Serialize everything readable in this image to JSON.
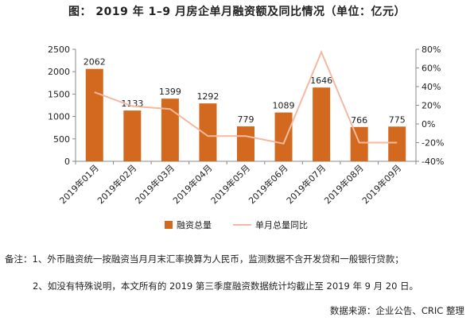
{
  "chart_data": {
    "type": "bar+line",
    "title": "图：  2019 年 1–9 月房企单月融资额及同比情况（单位：亿元）",
    "categories": [
      "2019年01月",
      "2019年02月",
      "2019年03月",
      "2019年04月",
      "2019年05月",
      "2019年06月",
      "2019年07月",
      "2019年08月",
      "2019年09月"
    ],
    "series": [
      {
        "name": "融资总量",
        "type": "bar",
        "axis": "left",
        "color": "#d2691e",
        "values": [
          2062,
          1133,
          1399,
          1292,
          779,
          1089,
          1646,
          766,
          775
        ]
      },
      {
        "name": "单月总量同比",
        "type": "line",
        "axis": "right",
        "color": "#f4b9a0",
        "values": [
          0.34,
          0.19,
          0.16,
          -0.13,
          -0.13,
          -0.21,
          0.77,
          -0.2,
          -0.2
        ]
      }
    ],
    "y_left": {
      "lim": [
        0,
        2500
      ],
      "ticks": [
        "0",
        "500",
        "1000",
        "1500",
        "2000",
        "2500"
      ],
      "tick_values": [
        0,
        500,
        1000,
        1500,
        2000,
        2500
      ]
    },
    "y_right": {
      "lim": [
        -0.4,
        0.8
      ],
      "ticks": [
        "-40%",
        "-20%",
        "0%",
        "20%",
        "40%",
        "60%",
        "80%"
      ],
      "tick_values": [
        -0.4,
        -0.2,
        0,
        0.2,
        0.4,
        0.6,
        0.8
      ]
    },
    "legend_position": "bottom",
    "grid": false
  },
  "notes": {
    "line1": "备注：1、外币融资统一按融资当月月末汇率换算为人民币，监测数据不含开发贷和一般银行贷款；",
    "line2": "2、如没有特殊说明，本文所有的 2019 第三季度融资数据统计均截止至 2019 年 9 月 20 日。",
    "source": "数据来源：企业公告、CRIC 整理"
  }
}
